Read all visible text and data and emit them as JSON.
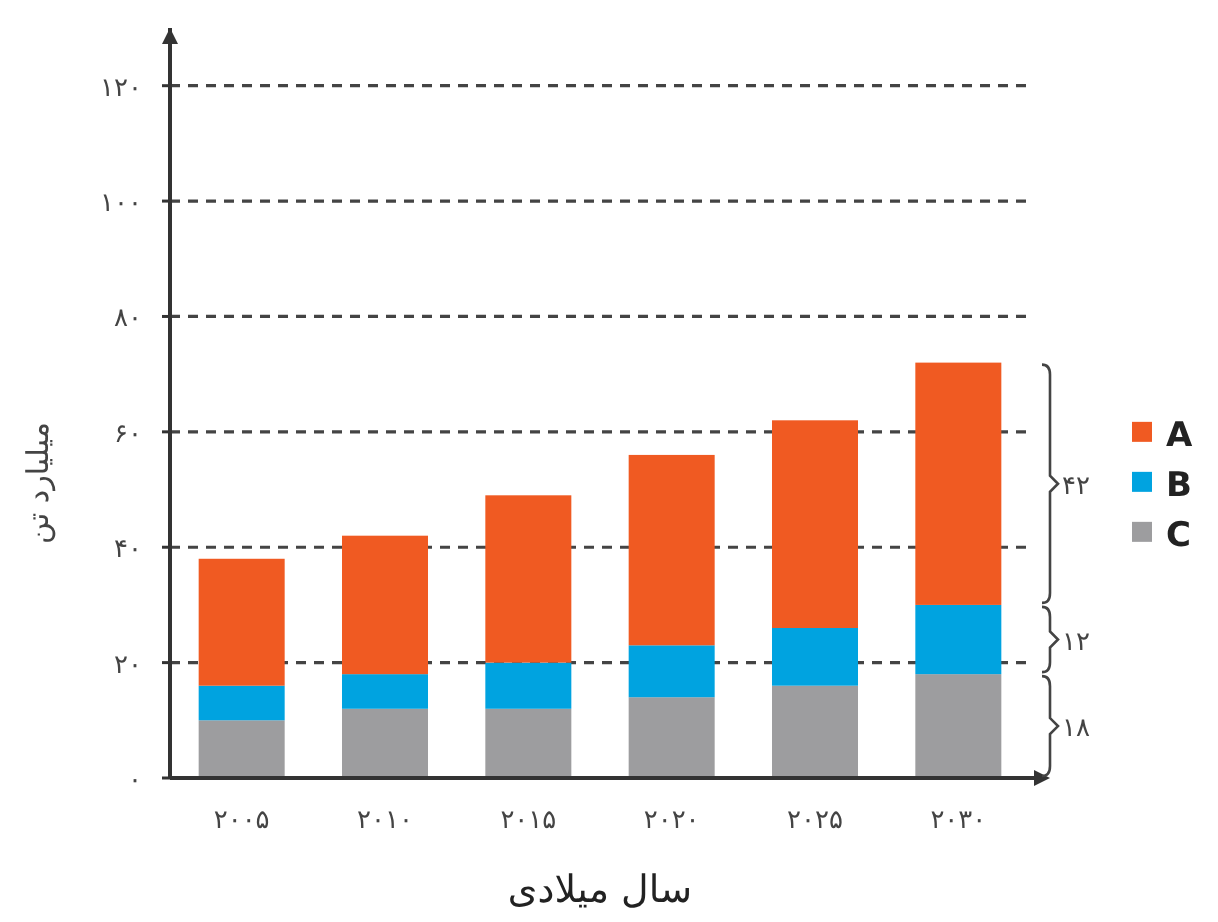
{
  "chart_data": {
    "type": "bar",
    "stacked": true,
    "ylabel": "میلیارد تن",
    "xlabel": "سال میلادی",
    "categories": [
      "۲۰۰۵",
      "۲۰۱۰",
      "۲۰۱۵",
      "۲۰۲۰",
      "۲۰۲۵",
      "۲۰۳۰"
    ],
    "series": [
      {
        "name": "C",
        "color": "#9d9d9f",
        "values": [
          10,
          12,
          12,
          14,
          16,
          18
        ]
      },
      {
        "name": "B",
        "color": "#00a3e0",
        "values": [
          6,
          6,
          8,
          9,
          10,
          12
        ]
      },
      {
        "name": "A",
        "color": "#f05a22",
        "values": [
          22,
          24,
          29,
          33,
          36,
          42
        ]
      }
    ],
    "ylim": [
      0,
      130
    ],
    "yticks": [
      {
        "value": 0,
        "label": "۰"
      },
      {
        "value": 20,
        "label": "۲۰"
      },
      {
        "value": 40,
        "label": "۴۰"
      },
      {
        "value": 60,
        "label": "۶۰"
      },
      {
        "value": 80,
        "label": "۸۰"
      },
      {
        "value": 100,
        "label": "۱۰۰"
      },
      {
        "value": 120,
        "label": "۱۲۰"
      }
    ],
    "grid": "y",
    "legend": "right",
    "annotations": [
      "۴۲",
      "۱۲",
      "۱۸"
    ]
  }
}
